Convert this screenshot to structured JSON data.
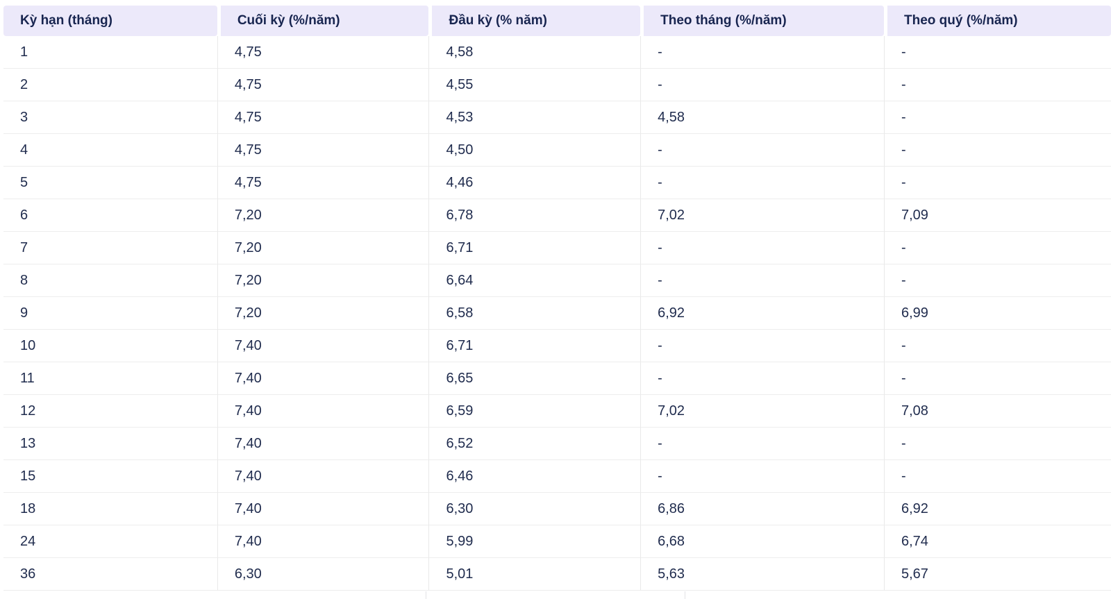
{
  "chart_data": {
    "type": "table",
    "title": "",
    "columns": [
      "Kỳ hạn (tháng)",
      "Cuối kỳ (%/năm)",
      "Đầu kỳ (% năm)",
      "Theo tháng (%/năm)",
      "Theo quý (%/năm)"
    ],
    "rows": [
      [
        "1",
        "4,75",
        "4,58",
        "-",
        "-"
      ],
      [
        "2",
        "4,75",
        "4,55",
        "-",
        "-"
      ],
      [
        "3",
        "4,75",
        "4,53",
        "4,58",
        "-"
      ],
      [
        "4",
        "4,75",
        "4,50",
        "-",
        "-"
      ],
      [
        "5",
        "4,75",
        "4,46",
        "-",
        "-"
      ],
      [
        "6",
        "7,20",
        "6,78",
        "7,02",
        "7,09"
      ],
      [
        "7",
        "7,20",
        "6,71",
        "-",
        "-"
      ],
      [
        "8",
        "7,20",
        "6,64",
        "-",
        "-"
      ],
      [
        "9",
        "7,20",
        "6,58",
        "6,92",
        "6,99"
      ],
      [
        "10",
        "7,40",
        "6,71",
        "-",
        "-"
      ],
      [
        "11",
        "7,40",
        "6,65",
        "-",
        "-"
      ],
      [
        "12",
        "7,40",
        "6,59",
        "7,02",
        "7,08"
      ],
      [
        "13",
        "7,40",
        "6,52",
        "-",
        "-"
      ],
      [
        "15",
        "7,40",
        "6,46",
        "-",
        "-"
      ],
      [
        "18",
        "7,40",
        "6,30",
        "6,86",
        "6,92"
      ],
      [
        "24",
        "7,40",
        "5,99",
        "6,68",
        "6,74"
      ],
      [
        "36",
        "6,30",
        "5,01",
        "5,63",
        "5,67"
      ]
    ],
    "empty_marker": "-",
    "decimal_separator": ","
  },
  "colors": {
    "page_bg": "#FFFFFF",
    "header_bg": "#ECE9FA",
    "header_text": "#182550",
    "body_text": "#1F2B4D",
    "row_border": "#EDEDED",
    "col_border": "#E9E9E9",
    "stub_color": "#E2E2E6"
  }
}
